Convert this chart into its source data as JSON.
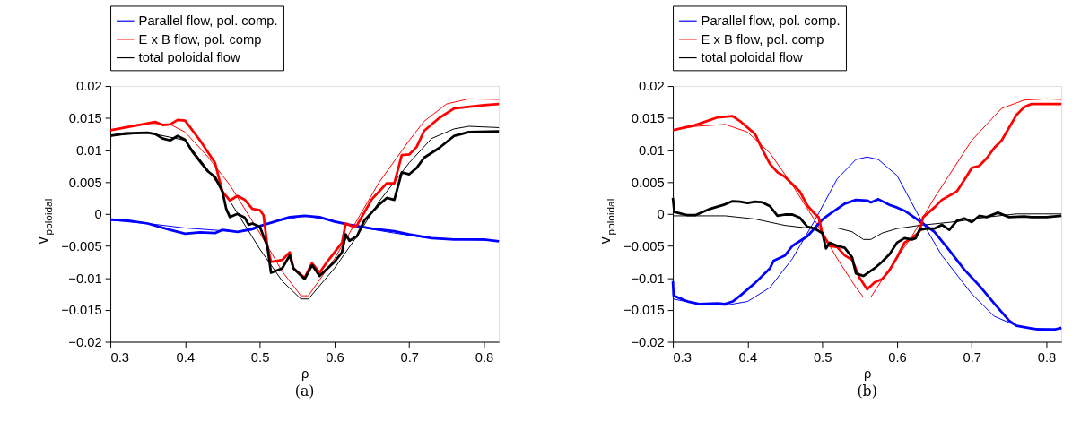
{
  "chart_data": [
    {
      "type": "line",
      "xlabel": "ρ",
      "ylabel": "v$_{poloidal}$",
      "annotations": [
        "(a)"
      ],
      "xlim": [
        0.3,
        0.82
      ],
      "ylim": [
        -0.02,
        0.02
      ],
      "xticks": [
        0.3,
        0.4,
        0.5,
        0.6,
        0.7,
        0.8
      ],
      "yticks": [
        {
          "value": -0.02,
          "label": "−0.02"
        },
        {
          "value": -0.015,
          "label": "−0.015"
        },
        {
          "value": -0.01,
          "label": "−0.01"
        },
        {
          "value": -0.005,
          "label": "−0.005"
        },
        0,
        0.005,
        0.01,
        0.015,
        0.02
      ],
      "grid": false,
      "legend": "top",
      "marker": "none",
      "line_style": "solid",
      "series": [
        {
          "name": "Parallel flow, pol. comp.",
          "color": "#0000ff",
          "x": [
            0.3,
            0.35,
            0.4,
            0.47,
            0.52,
            0.56,
            0.6,
            0.63,
            0.68,
            0.72,
            0.77,
            0.82
          ],
          "values": [
            -0.001,
            -0.0015,
            -0.0022,
            -0.0028,
            -0.0012,
            -0.0003,
            -0.0011,
            -0.002,
            -0.003,
            -0.0037,
            -0.004,
            -0.0042
          ]
        },
        {
          "name": "E x B flow, pol. comp",
          "color": "#ff0000",
          "x": [
            0.3,
            0.35,
            0.38,
            0.4,
            0.43,
            0.46,
            0.5,
            0.53,
            0.555,
            0.565,
            0.6,
            0.63,
            0.66,
            0.7,
            0.72,
            0.75,
            0.78,
            0.82
          ],
          "values": [
            0.013,
            0.0142,
            0.014,
            0.0128,
            0.009,
            0.0045,
            -0.003,
            -0.009,
            -0.0128,
            -0.0128,
            -0.007,
            -0.001,
            0.005,
            0.0115,
            0.0145,
            0.0172,
            0.018,
            0.0179
          ]
        },
        {
          "name": "total poloidal flow",
          "color": "#000000",
          "x": [
            0.3,
            0.35,
            0.38,
            0.4,
            0.43,
            0.46,
            0.5,
            0.53,
            0.555,
            0.565,
            0.6,
            0.63,
            0.66,
            0.7,
            0.73,
            0.76,
            0.78,
            0.82
          ],
          "values": [
            0.0122,
            0.0127,
            0.012,
            0.0115,
            0.007,
            0.002,
            -0.0055,
            -0.0105,
            -0.0133,
            -0.0133,
            -0.0085,
            -0.0035,
            0.002,
            0.008,
            0.0118,
            0.0133,
            0.0137,
            0.0135
          ]
        },
        {
          "color": "#0000ff",
          "x": [
            0.3,
            0.32,
            0.35,
            0.38,
            0.4,
            0.42,
            0.44,
            0.45,
            0.47,
            0.49,
            0.5,
            0.52,
            0.54,
            0.56,
            0.58,
            0.6,
            0.62,
            0.65,
            0.68,
            0.7,
            0.73,
            0.76,
            0.8,
            0.82
          ],
          "values": [
            -0.0009,
            -0.001,
            -0.0015,
            -0.0025,
            -0.0031,
            -0.0029,
            -0.003,
            -0.0025,
            -0.0028,
            -0.0024,
            -0.0019,
            -0.0012,
            -0.0005,
            -0.0003,
            -0.0005,
            -0.0012,
            -0.0017,
            -0.0023,
            -0.0027,
            -0.0032,
            -0.0038,
            -0.004,
            -0.004,
            -0.0043
          ]
        },
        {
          "color": "#ff0000",
          "x": [
            0.3,
            0.36,
            0.37,
            0.38,
            0.39,
            0.4,
            0.42,
            0.44,
            0.45,
            0.46,
            0.47,
            0.48,
            0.49,
            0.5,
            0.505,
            0.51,
            0.515,
            0.53,
            0.54,
            0.545,
            0.56,
            0.57,
            0.58,
            0.59,
            0.6,
            0.61,
            0.615,
            0.625,
            0.63,
            0.65,
            0.67,
            0.68,
            0.69,
            0.7,
            0.71,
            0.72,
            0.74,
            0.76,
            0.8,
            0.82
          ],
          "values": [
            0.0131,
            0.0144,
            0.0139,
            0.014,
            0.0147,
            0.0146,
            0.0115,
            0.008,
            0.0035,
            0.0021,
            0.0028,
            0.0022,
            0.0008,
            0.0006,
            -0.0002,
            -0.005,
            -0.0075,
            -0.0072,
            -0.006,
            -0.0085,
            -0.01,
            -0.0077,
            -0.0092,
            -0.0075,
            -0.006,
            -0.0045,
            -0.0015,
            -0.002,
            -0.0018,
            0.0023,
            0.0048,
            0.0048,
            0.0092,
            0.0093,
            0.0105,
            0.013,
            0.015,
            0.0165,
            0.017,
            0.0172
          ]
        },
        {
          "color": "#000000",
          "x": [
            0.3,
            0.32,
            0.35,
            0.36,
            0.37,
            0.38,
            0.39,
            0.4,
            0.41,
            0.43,
            0.44,
            0.45,
            0.455,
            0.46,
            0.47,
            0.48,
            0.485,
            0.49,
            0.5,
            0.51,
            0.515,
            0.53,
            0.54,
            0.545,
            0.56,
            0.57,
            0.58,
            0.6,
            0.61,
            0.615,
            0.62,
            0.63,
            0.64,
            0.66,
            0.67,
            0.68,
            0.69,
            0.7,
            0.71,
            0.72,
            0.74,
            0.76,
            0.78,
            0.82
          ],
          "values": [
            0.0122,
            0.0126,
            0.0127,
            0.0125,
            0.0118,
            0.0115,
            0.0122,
            0.0116,
            0.0097,
            0.0067,
            0.0058,
            0.0035,
            0.0008,
            -0.0005,
            0.0,
            -0.0006,
            -0.0017,
            -0.0015,
            -0.002,
            -0.005,
            -0.0092,
            -0.0085,
            -0.0065,
            -0.0085,
            -0.0102,
            -0.008,
            -0.0097,
            -0.0075,
            -0.006,
            -0.0032,
            -0.0042,
            -0.0035,
            -0.001,
            0.0015,
            0.0025,
            0.0022,
            0.0065,
            0.0062,
            0.0072,
            0.0088,
            0.0103,
            0.0122,
            0.0128,
            0.0129
          ]
        }
      ]
    },
    {
      "type": "line",
      "xlabel": "ρ",
      "ylabel": "v$_{poloidal}$",
      "annotations": [
        "(b)"
      ],
      "xlim": [
        0.3,
        0.82
      ],
      "ylim": [
        -0.02,
        0.02
      ],
      "xticks": [
        0.3,
        0.4,
        0.5,
        0.6,
        0.7,
        0.8
      ],
      "yticks": [
        {
          "value": -0.02,
          "label": "−0.02"
        },
        {
          "value": -0.015,
          "label": "−0.015"
        },
        {
          "value": -0.01,
          "label": "−0.01"
        },
        {
          "value": -0.005,
          "label": "−0.005"
        },
        0,
        0.005,
        0.01,
        0.015,
        0.02
      ],
      "grid": false,
      "legend": "top",
      "marker": "none",
      "line_style": "solid",
      "series": [
        {
          "name": "Parallel flow, pol. comp.",
          "color": "#0000ff",
          "x": [
            0.3,
            0.33,
            0.37,
            0.4,
            0.43,
            0.46,
            0.49,
            0.52,
            0.545,
            0.56,
            0.575,
            0.6,
            0.63,
            0.66,
            0.7,
            0.73,
            0.76,
            0.78,
            0.82
          ],
          "values": [
            -0.0133,
            -0.014,
            -0.0143,
            -0.0137,
            -0.0115,
            -0.007,
            -0.001,
            0.0055,
            0.0085,
            0.0089,
            0.0085,
            0.006,
            -0.0005,
            -0.0065,
            -0.0125,
            -0.016,
            -0.0175,
            -0.0179,
            -0.018
          ]
        },
        {
          "name": "E x B flow, pol. comp",
          "color": "#ff0000",
          "x": [
            0.3,
            0.33,
            0.37,
            0.4,
            0.43,
            0.46,
            0.49,
            0.52,
            0.545,
            0.555,
            0.565,
            0.59,
            0.62,
            0.65,
            0.7,
            0.74,
            0.77,
            0.8,
            0.82
          ],
          "values": [
            0.0131,
            0.0137,
            0.014,
            0.0128,
            0.0095,
            0.0045,
            -0.001,
            -0.007,
            -0.0115,
            -0.013,
            -0.013,
            -0.0085,
            -0.0035,
            0.0025,
            0.0115,
            0.0165,
            0.0178,
            0.018,
            0.0179
          ]
        },
        {
          "name": "total poloidal flow",
          "color": "#000000",
          "x": [
            0.3,
            0.37,
            0.41,
            0.45,
            0.48,
            0.52,
            0.54,
            0.555,
            0.565,
            0.58,
            0.6,
            0.63,
            0.68,
            0.72,
            0.76,
            0.82
          ],
          "values": [
            -0.0003,
            -0.0003,
            -0.0008,
            -0.0018,
            -0.0022,
            -0.0022,
            -0.0028,
            -0.004,
            -0.004,
            -0.003,
            -0.0023,
            -0.0018,
            -0.0012,
            -0.0005,
            0.0,
            0.0
          ]
        },
        {
          "color": "#0000ff",
          "x": [
            0.3,
            0.301,
            0.32,
            0.335,
            0.36,
            0.37,
            0.38,
            0.39,
            0.41,
            0.43,
            0.435,
            0.45,
            0.46,
            0.48,
            0.49,
            0.5,
            0.51,
            0.53,
            0.545,
            0.56,
            0.565,
            0.575,
            0.59,
            0.6,
            0.61,
            0.62,
            0.635,
            0.65,
            0.67,
            0.69,
            0.71,
            0.73,
            0.75,
            0.76,
            0.78,
            0.79,
            0.81,
            0.82
          ],
          "values": [
            -0.0105,
            -0.0128,
            -0.0137,
            -0.0141,
            -0.014,
            -0.0141,
            -0.0137,
            -0.0128,
            -0.0108,
            -0.0085,
            -0.0073,
            -0.0065,
            -0.005,
            -0.0035,
            -0.0022,
            -0.0009,
            0.0,
            0.0016,
            0.0022,
            0.0021,
            0.0018,
            0.0023,
            0.0014,
            0.001,
            0.0005,
            -0.0003,
            -0.0015,
            -0.0028,
            -0.0057,
            -0.0087,
            -0.0112,
            -0.014,
            -0.0167,
            -0.0175,
            -0.0179,
            -0.0181,
            -0.0181,
            -0.0178
          ]
        },
        {
          "color": "#ff0000",
          "x": [
            0.3,
            0.33,
            0.36,
            0.38,
            0.39,
            0.41,
            0.42,
            0.43,
            0.44,
            0.45,
            0.47,
            0.48,
            0.49,
            0.495,
            0.5,
            0.51,
            0.52,
            0.53,
            0.54,
            0.55,
            0.56,
            0.57,
            0.58,
            0.59,
            0.6,
            0.61,
            0.62,
            0.63,
            0.635,
            0.65,
            0.66,
            0.68,
            0.69,
            0.7,
            0.71,
            0.72,
            0.73,
            0.74,
            0.75,
            0.76,
            0.77,
            0.78,
            0.8,
            0.82
          ],
          "values": [
            0.0131,
            0.0139,
            0.0151,
            0.0153,
            0.0145,
            0.0125,
            0.01,
            0.0078,
            0.0065,
            0.0058,
            0.0035,
            0.0013,
            0.0,
            -0.0005,
            -0.003,
            -0.005,
            -0.0052,
            -0.0065,
            -0.0072,
            -0.01,
            -0.0118,
            -0.0107,
            -0.0102,
            -0.0088,
            -0.0068,
            -0.0045,
            -0.0038,
            -0.0028,
            -0.0005,
            0.001,
            0.0022,
            0.0035,
            0.0053,
            0.0072,
            0.0075,
            0.0087,
            0.0103,
            0.0115,
            0.0135,
            0.0155,
            0.0167,
            0.0172,
            0.0172,
            0.0172
          ]
        },
        {
          "color": "#000000",
          "x": [
            0.3,
            0.302,
            0.32,
            0.33,
            0.35,
            0.37,
            0.38,
            0.39,
            0.4,
            0.41,
            0.42,
            0.43,
            0.44,
            0.45,
            0.46,
            0.47,
            0.48,
            0.49,
            0.5,
            0.505,
            0.51,
            0.52,
            0.53,
            0.54,
            0.545,
            0.555,
            0.57,
            0.58,
            0.59,
            0.6,
            0.61,
            0.62,
            0.625,
            0.63,
            0.64,
            0.65,
            0.66,
            0.67,
            0.68,
            0.69,
            0.7,
            0.71,
            0.72,
            0.735,
            0.75,
            0.77,
            0.78,
            0.8,
            0.82
          ],
          "values": [
            0.0025,
            0.0003,
            -0.0002,
            -0.0002,
            0.0008,
            0.0015,
            0.002,
            0.0019,
            0.0017,
            0.0019,
            0.0018,
            0.0012,
            -0.0003,
            -0.0001,
            -0.0001,
            -0.0006,
            -0.002,
            -0.0023,
            -0.003,
            -0.0054,
            -0.0045,
            -0.005,
            -0.0053,
            -0.0068,
            -0.0093,
            -0.0097,
            -0.0085,
            -0.0075,
            -0.0063,
            -0.0045,
            -0.0038,
            -0.004,
            -0.0038,
            -0.0025,
            -0.0023,
            -0.0023,
            -0.0017,
            -0.0025,
            -0.0011,
            -0.0007,
            -0.0013,
            -0.0003,
            -0.0005,
            0.0002,
            -0.0005,
            -0.0004,
            -0.0005,
            -0.0005,
            -0.0003
          ]
        }
      ]
    }
  ]
}
